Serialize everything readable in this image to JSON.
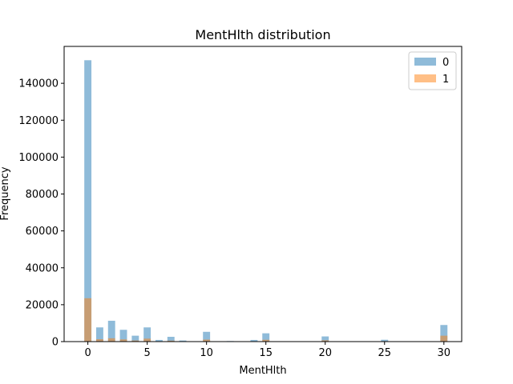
{
  "chart_data": {
    "type": "bar",
    "subtype": "histogram",
    "title": "MentHlth distribution",
    "xlabel": "MentHlth",
    "ylabel": "Frequency",
    "xlim": [
      -2,
      31.5
    ],
    "ylim": [
      0,
      160000
    ],
    "xticks": [
      0,
      5,
      10,
      15,
      20,
      25,
      30
    ],
    "yticks": [
      0,
      20000,
      40000,
      60000,
      80000,
      100000,
      120000,
      140000
    ],
    "bin_width": 0.6,
    "legend_position": "top-right",
    "grid": false,
    "series": [
      {
        "name": "0",
        "color": "#1f77b4",
        "opacity": 0.5,
        "bins": [
          {
            "x": 0,
            "value": 152500
          },
          {
            "x": 1,
            "value": 7700
          },
          {
            "x": 2,
            "value": 11300
          },
          {
            "x": 3,
            "value": 6400
          },
          {
            "x": 4,
            "value": 3200
          },
          {
            "x": 5,
            "value": 7700
          },
          {
            "x": 6,
            "value": 900
          },
          {
            "x": 7,
            "value": 2600
          },
          {
            "x": 8,
            "value": 600
          },
          {
            "x": 10,
            "value": 5300
          },
          {
            "x": 12,
            "value": 300
          },
          {
            "x": 14,
            "value": 900
          },
          {
            "x": 15,
            "value": 4500
          },
          {
            "x": 20,
            "value": 2800
          },
          {
            "x": 25,
            "value": 1000
          },
          {
            "x": 30,
            "value": 9000
          }
        ]
      },
      {
        "name": "1",
        "color": "#ff7f0e",
        "opacity": 0.5,
        "bins": [
          {
            "x": 0,
            "value": 23500
          },
          {
            "x": 1,
            "value": 1300
          },
          {
            "x": 2,
            "value": 1800
          },
          {
            "x": 3,
            "value": 1200
          },
          {
            "x": 4,
            "value": 600
          },
          {
            "x": 5,
            "value": 1600
          },
          {
            "x": 6,
            "value": 200
          },
          {
            "x": 7,
            "value": 500
          },
          {
            "x": 8,
            "value": 100
          },
          {
            "x": 10,
            "value": 1100
          },
          {
            "x": 12,
            "value": 60
          },
          {
            "x": 14,
            "value": 200
          },
          {
            "x": 15,
            "value": 1000
          },
          {
            "x": 20,
            "value": 700
          },
          {
            "x": 25,
            "value": 250
          },
          {
            "x": 30,
            "value": 3200
          }
        ]
      }
    ]
  }
}
